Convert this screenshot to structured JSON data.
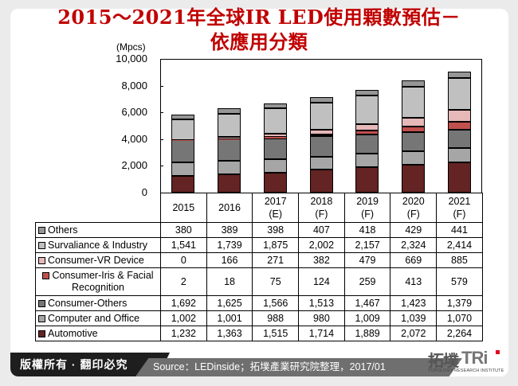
{
  "title": {
    "line1": "2015～2021年全球IR LED使用顆數預估－",
    "line2": "依應用分類"
  },
  "footer": {
    "copyright": "版權所有 · 翻印必究",
    "source": "Source：LEDinside；拓墣產業研究院整理，2017/01",
    "logo_zh": "拓墣",
    "logo_en": "TRi",
    "logo_sub": "TOPOLOGY RESEARCH INSTITUTE"
  },
  "colors": {
    "Others": "#969696",
    "Survaliance & Industry": "#c0c0c0",
    "Consumer-VR Device": "#e6b8b8",
    "Consumer-Iris & Facial Recognition": "#c0504d",
    "Consumer-Others": "#767676",
    "Computer and Office": "#a6a6a6",
    "Automotive": "#632423"
  },
  "chart_data": {
    "type": "bar",
    "stacked": true,
    "title": "2015～2021年全球IR LED使用顆數預估－依應用分類",
    "ylabel": "(Mpcs)",
    "xlabel": "",
    "ylim": [
      0,
      10000
    ],
    "yticks": [
      "10,000",
      "8,000",
      "6,000",
      "4,000",
      "2,000",
      "0"
    ],
    "categories": [
      "2015",
      "2016",
      "2017\n(E)",
      "2018\n(F)",
      "2019\n(F)",
      "2020\n(F)",
      "2021\n(F)"
    ],
    "category_lines": [
      [
        "2015",
        ""
      ],
      [
        "2016",
        ""
      ],
      [
        "2017",
        "(E)"
      ],
      [
        "2018",
        "(F)"
      ],
      [
        "2019",
        "(F)"
      ],
      [
        "2020",
        "(F)"
      ],
      [
        "2021",
        "(F)"
      ]
    ],
    "legend_position": "data-table",
    "grid": false,
    "series": [
      {
        "name": "Others",
        "values": [
          380,
          389,
          398,
          407,
          418,
          429,
          441
        ],
        "labels": [
          "380",
          "389",
          "398",
          "407",
          "418",
          "429",
          "441"
        ]
      },
      {
        "name": "Survaliance & Industry",
        "values": [
          1541,
          1739,
          1875,
          2002,
          2157,
          2324,
          2414
        ],
        "labels": [
          "1,541",
          "1,739",
          "1,875",
          "2,002",
          "2,157",
          "2,324",
          "2,414"
        ]
      },
      {
        "name": "Consumer-VR Device",
        "values": [
          0,
          166,
          271,
          382,
          479,
          669,
          885
        ],
        "labels": [
          "0",
          "166",
          "271",
          "382",
          "479",
          "669",
          "885"
        ]
      },
      {
        "name": "Consumer-Iris & Facial Recognition",
        "label_lines": [
          "Consumer-Iris & Facial",
          "Recognition"
        ],
        "values": [
          2,
          18,
          75,
          124,
          259,
          413,
          579
        ],
        "labels": [
          "2",
          "18",
          "75",
          "124",
          "259",
          "413",
          "579"
        ]
      },
      {
        "name": "Consumer-Others",
        "values": [
          1692,
          1625,
          1566,
          1513,
          1467,
          1423,
          1379
        ],
        "labels": [
          "1,692",
          "1,625",
          "1,566",
          "1,513",
          "1,467",
          "1,423",
          "1,379"
        ]
      },
      {
        "name": "Computer and Office",
        "values": [
          1002,
          1001,
          988,
          980,
          1009,
          1039,
          1070
        ],
        "labels": [
          "1,002",
          "1,001",
          "988",
          "980",
          "1,009",
          "1,039",
          "1,070"
        ]
      },
      {
        "name": "Automotive",
        "values": [
          1232,
          1363,
          1515,
          1714,
          1889,
          2072,
          2264
        ],
        "labels": [
          "1,232",
          "1,363",
          "1,515",
          "1,714",
          "1,889",
          "2,072",
          "2,264"
        ]
      }
    ],
    "stack_order_bottom_to_top": [
      "Automotive",
      "Computer and Office",
      "Consumer-Others",
      "Consumer-Iris & Facial Recognition",
      "Consumer-VR Device",
      "Survaliance & Industry",
      "Others"
    ]
  }
}
